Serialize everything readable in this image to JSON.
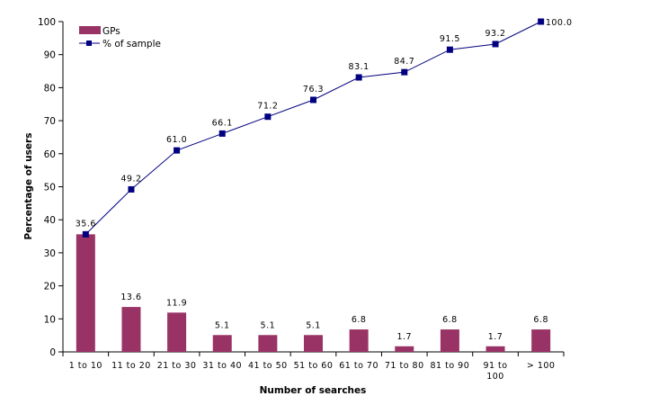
{
  "chart_data": {
    "type": "bar+line",
    "title": "",
    "xlabel": "Number of searches",
    "ylabel": "Percentage of users",
    "ylim": [
      0,
      100
    ],
    "yticks": [
      0,
      10,
      20,
      30,
      40,
      50,
      60,
      70,
      80,
      90,
      100
    ],
    "categories": [
      "1 to 10",
      "11 to 20",
      "21 to 30",
      "31 to 40",
      "41 to 50",
      "51 to 60",
      "61 to 70",
      "71 to 80",
      "81 to 90",
      "91 to 100",
      "> 100"
    ],
    "series": [
      {
        "name": "GPs",
        "type": "bar",
        "color": "#993366",
        "values": [
          35.6,
          13.6,
          11.9,
          5.1,
          5.1,
          5.1,
          6.8,
          1.7,
          6.8,
          1.7,
          6.8
        ],
        "labels": [
          "35.6",
          "13.6",
          "11.9",
          "5.1",
          "5.1",
          "5.1",
          "6.8",
          "1.7",
          "6.8",
          "1.7",
          "6.8"
        ]
      },
      {
        "name": "% of sample",
        "type": "line",
        "color": "#000080",
        "values": [
          35.6,
          49.2,
          61.0,
          66.1,
          71.2,
          76.3,
          83.1,
          84.7,
          91.5,
          93.2,
          100.0
        ],
        "labels": [
          "35.6",
          "49.2",
          "61.0",
          "66.1",
          "71.2",
          "76.3",
          "83.1",
          "84.7",
          "91.5",
          "93.2",
          "100.0"
        ]
      }
    ],
    "legend": "top-left",
    "grid": false
  }
}
